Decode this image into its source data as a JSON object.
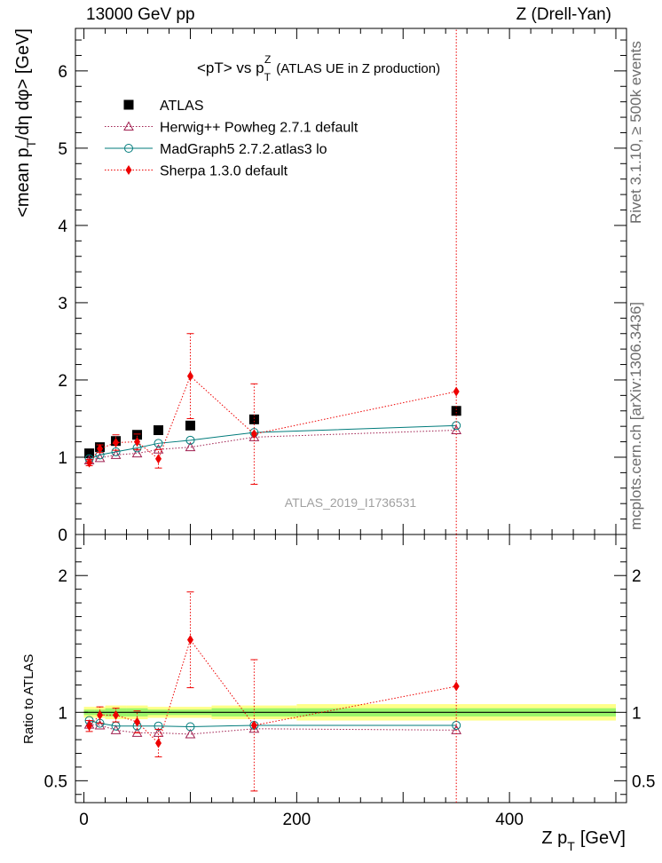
{
  "header": {
    "left": "13000 GeV pp",
    "right": "Z (Drell-Yan)"
  },
  "side_labels": {
    "rivet": "Rivet 3.1.10, ≥ 500k events",
    "mcplots": "mcplots.cern.ch [arXiv:1306.3436]"
  },
  "chart_data": {
    "type": "scatter",
    "title": "<pT> vs p_T^Z (ATLAS UE in Z production)",
    "title_main": "<pT> vs p",
    "title_sub": "T",
    "title_sup": "Z",
    "title_rest": "(ATLAS UE in Z production)",
    "watermark": "ATLAS_2019_I1736531",
    "xlabel": "Z p_T [GeV]",
    "xlabel_main": "Z p",
    "xlabel_sub": "T",
    "xlabel_rest": "[GeV]",
    "ylabel": "<mean p_T/dη dφ> [GeV]",
    "ylabel_main": "<mean p",
    "ylabel_sub": "T",
    "ylabel_rest": "/dη dφ> [GeV]",
    "ratio_ylabel": "Ratio to ATLAS",
    "xlim": [
      -8,
      510
    ],
    "ylim": [
      0,
      6.55
    ],
    "ratio_ylim": [
      0.34,
      2.3
    ],
    "xticks": [
      0,
      200,
      400
    ],
    "xtick_labels": [
      "0",
      "200",
      "400"
    ],
    "yticks": [
      1,
      2,
      3,
      4,
      5,
      6
    ],
    "ytick_labels": [
      "1",
      "2",
      "3",
      "4",
      "5",
      "6"
    ],
    "ytick_zero_label": "0",
    "ratio_yticks": [
      0.5,
      1,
      2
    ],
    "ratio_ytick_labels": [
      "0.5",
      "1",
      "2"
    ],
    "x": [
      5,
      15,
      30,
      50,
      70,
      100,
      160,
      350
    ],
    "x_edges": [
      0,
      10,
      20,
      40,
      60,
      80,
      120,
      200,
      500
    ],
    "series": [
      {
        "name": "ATLAS",
        "color": "#000000",
        "marker": "square",
        "values": [
          1.05,
          1.13,
          1.21,
          1.29,
          1.35,
          1.41,
          1.49,
          1.6
        ],
        "ratio": [
          1,
          1,
          1,
          1,
          1,
          1,
          1,
          1
        ],
        "band_inner": [
          0.02,
          0.02,
          0.03,
          0.03,
          0.02,
          0.02,
          0.03,
          0.03
        ],
        "band_outer": [
          0.04,
          0.04,
          0.05,
          0.05,
          0.04,
          0.04,
          0.05,
          0.06
        ]
      },
      {
        "name": "Herwig++ Powheg 2.7.1 default",
        "color": "#a02050",
        "marker": "triangle",
        "values": [
          0.96,
          0.99,
          1.03,
          1.05,
          1.1,
          1.13,
          1.26,
          1.35
        ],
        "ratio": [
          0.91,
          0.905,
          0.87,
          0.85,
          0.85,
          0.84,
          0.88,
          0.87
        ]
      },
      {
        "name": "MadGraph5 2.7.2.atlas3 lo",
        "color": "#007b7b",
        "marker": "circle",
        "values": [
          0.98,
          1.03,
          1.07,
          1.12,
          1.18,
          1.22,
          1.32,
          1.41
        ],
        "ratio": [
          0.94,
          0.92,
          0.9,
          0.9,
          0.9,
          0.895,
          0.905,
          0.905
        ]
      },
      {
        "name": "Sherpa 1.3.0 default",
        "color": "#ee0000",
        "marker": "diamond",
        "values": [
          0.93,
          1.11,
          1.19,
          1.2,
          0.98,
          2.05,
          1.3,
          1.85
        ],
        "errors": [
          0.04,
          0.05,
          0.1,
          0.1,
          0.12,
          0.55,
          0.65,
          10
        ],
        "ratio": [
          0.9,
          0.98,
          0.98,
          0.93,
          0.775,
          1.53,
          0.905,
          1.19
        ],
        "ratio_errors": [
          0.04,
          0.06,
          0.05,
          0.08,
          0.1,
          0.35,
          0.48,
          10
        ]
      }
    ]
  }
}
